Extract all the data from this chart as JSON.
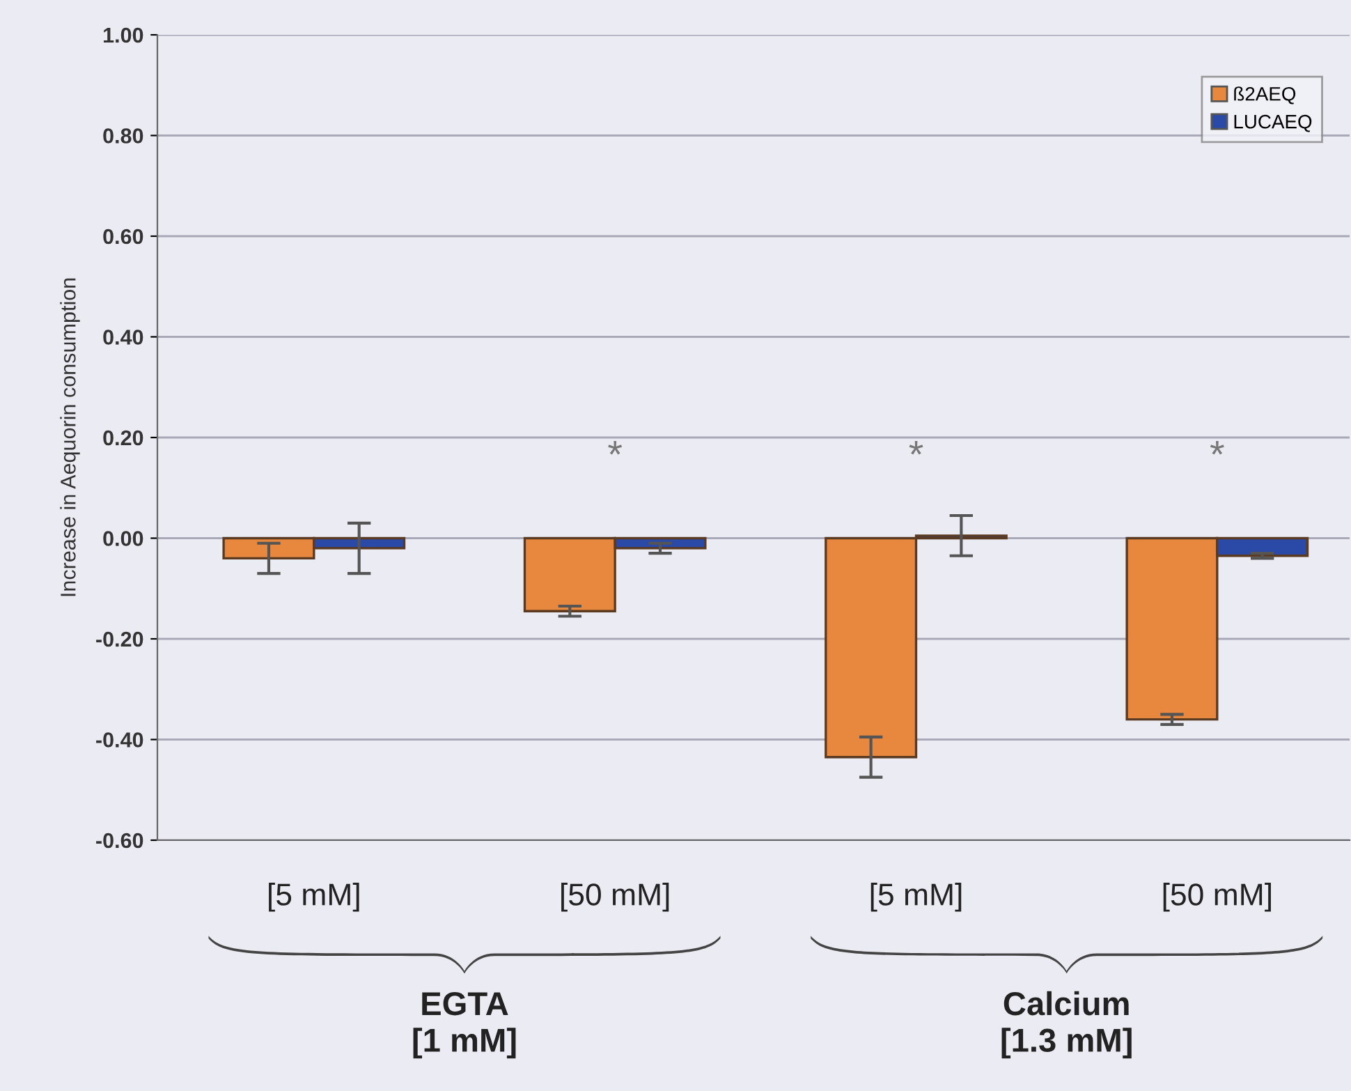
{
  "chart_data": {
    "type": "bar",
    "ylabel": "Increase in Aequorin consumption",
    "categories": [
      "[5 mM]",
      "[50 mM]",
      "[5 mM]",
      "[50 mM]"
    ],
    "series": [
      {
        "name": "ß2AEQ",
        "color": "#e8873e",
        "values": [
          -0.04,
          -0.145,
          -0.435,
          -0.36
        ],
        "errors": [
          0.03,
          0.01,
          0.04,
          0.01
        ]
      },
      {
        "name": "LUCAEQ",
        "color": "#2b4aa8",
        "values": [
          -0.02,
          -0.02,
          0.005,
          -0.035
        ],
        "errors": [
          [
            -0.07,
            0.03
          ],
          0.01,
          0.04,
          0.005
        ]
      }
    ],
    "ylim": [
      -0.6,
      1.0
    ],
    "yticks": [
      {
        "value": -0.6,
        "label": "-0.60"
      },
      {
        "value": -0.4,
        "label": "-0.40"
      },
      {
        "value": -0.2,
        "label": "-0.20"
      },
      {
        "value": 0,
        "label": "0.00"
      },
      {
        "value": 0.2,
        "label": "0.20"
      },
      {
        "value": 0.4,
        "label": "0.40"
      },
      {
        "value": 0.6,
        "label": "0.60"
      },
      {
        "value": 0.8,
        "label": "0.80"
      },
      {
        "value": 1.0,
        "label": "1.00"
      }
    ],
    "grid": "y",
    "legend": "top right",
    "annotations": [
      "*",
      "*",
      "*",
      "EGTA\n[1 mM]",
      "Calcium\n[1.3 mM]"
    ]
  }
}
